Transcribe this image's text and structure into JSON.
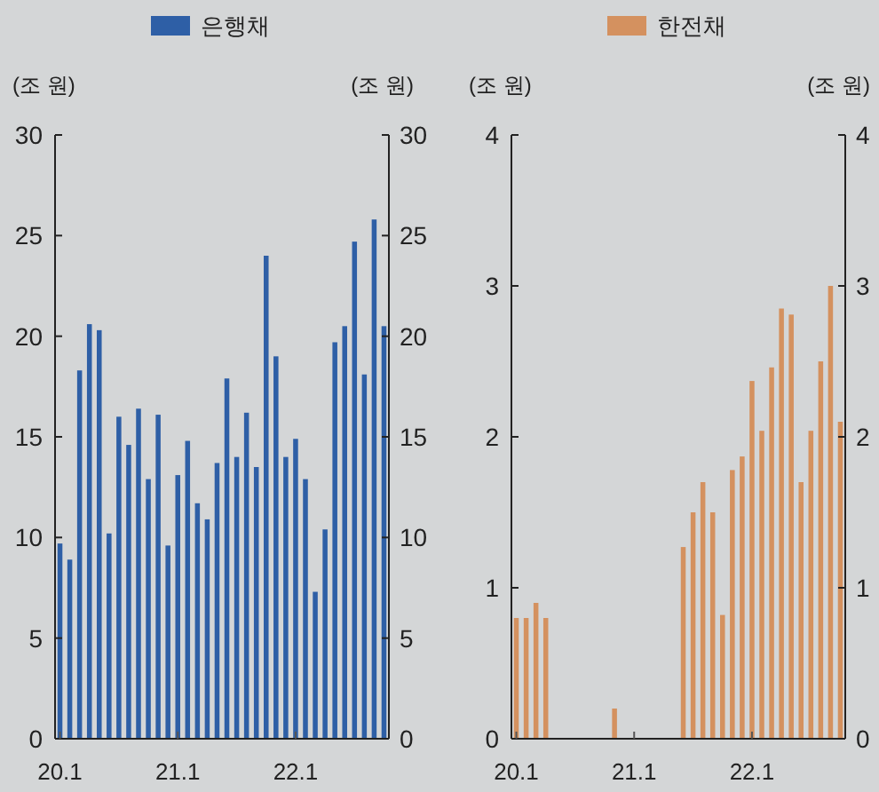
{
  "chart_data": [
    {
      "type": "bar",
      "categories": [
        "20.1",
        null,
        null,
        null,
        null,
        null,
        null,
        null,
        null,
        null,
        null,
        null,
        "21.1",
        null,
        null,
        null,
        null,
        null,
        null,
        null,
        null,
        null,
        null,
        null,
        "22.1",
        null,
        null,
        null,
        null,
        null,
        null,
        null,
        null,
        null
      ],
      "series": [
        {
          "name": "은행채",
          "color": "#2e5fa6",
          "values": [
            9.7,
            8.9,
            18.3,
            20.6,
            20.3,
            10.2,
            16.0,
            14.6,
            16.4,
            12.9,
            16.1,
            9.6,
            13.1,
            14.8,
            11.7,
            10.9,
            13.7,
            17.9,
            14.0,
            16.2,
            13.5,
            24.0,
            19.0,
            14.0,
            14.9,
            12.9,
            7.3,
            10.4,
            19.7,
            20.5,
            24.7,
            18.1,
            25.8,
            20.5
          ]
        }
      ],
      "ylabel": "(조 원)",
      "y2label": "(조 원)",
      "ylim": [
        0,
        30
      ],
      "yticks": [
        0,
        5,
        10,
        15,
        20,
        25,
        30
      ],
      "y2lim": [
        0,
        30
      ],
      "y2ticks": [
        0,
        5,
        10,
        15,
        20,
        25,
        30
      ],
      "legend": "top",
      "grid": false
    },
    {
      "type": "bar",
      "categories": [
        "20.1",
        null,
        null,
        null,
        null,
        null,
        null,
        null,
        null,
        null,
        null,
        null,
        "21.1",
        null,
        null,
        null,
        null,
        null,
        null,
        null,
        null,
        null,
        null,
        null,
        "22.1",
        null,
        null,
        null,
        null,
        null,
        null,
        null,
        null,
        null
      ],
      "series": [
        {
          "name": "한전채",
          "color": "#d4915f",
          "values": [
            0.8,
            0.8,
            0.9,
            0.8,
            null,
            null,
            null,
            null,
            null,
            null,
            0.2,
            null,
            null,
            null,
            null,
            null,
            null,
            1.27,
            1.5,
            1.7,
            1.5,
            0.82,
            1.78,
            1.87,
            2.37,
            2.04,
            2.46,
            2.85,
            2.81,
            1.7,
            2.04,
            2.5,
            3.0,
            2.1
          ]
        }
      ],
      "ylabel": "(조 원)",
      "y2label": "(조 원)",
      "ylim": [
        0,
        4
      ],
      "yticks": [
        0,
        1,
        2,
        3,
        4
      ],
      "y2lim": [
        0,
        4
      ],
      "y2ticks": [
        0,
        1,
        2,
        3,
        4
      ],
      "legend": "top",
      "grid": false
    }
  ]
}
